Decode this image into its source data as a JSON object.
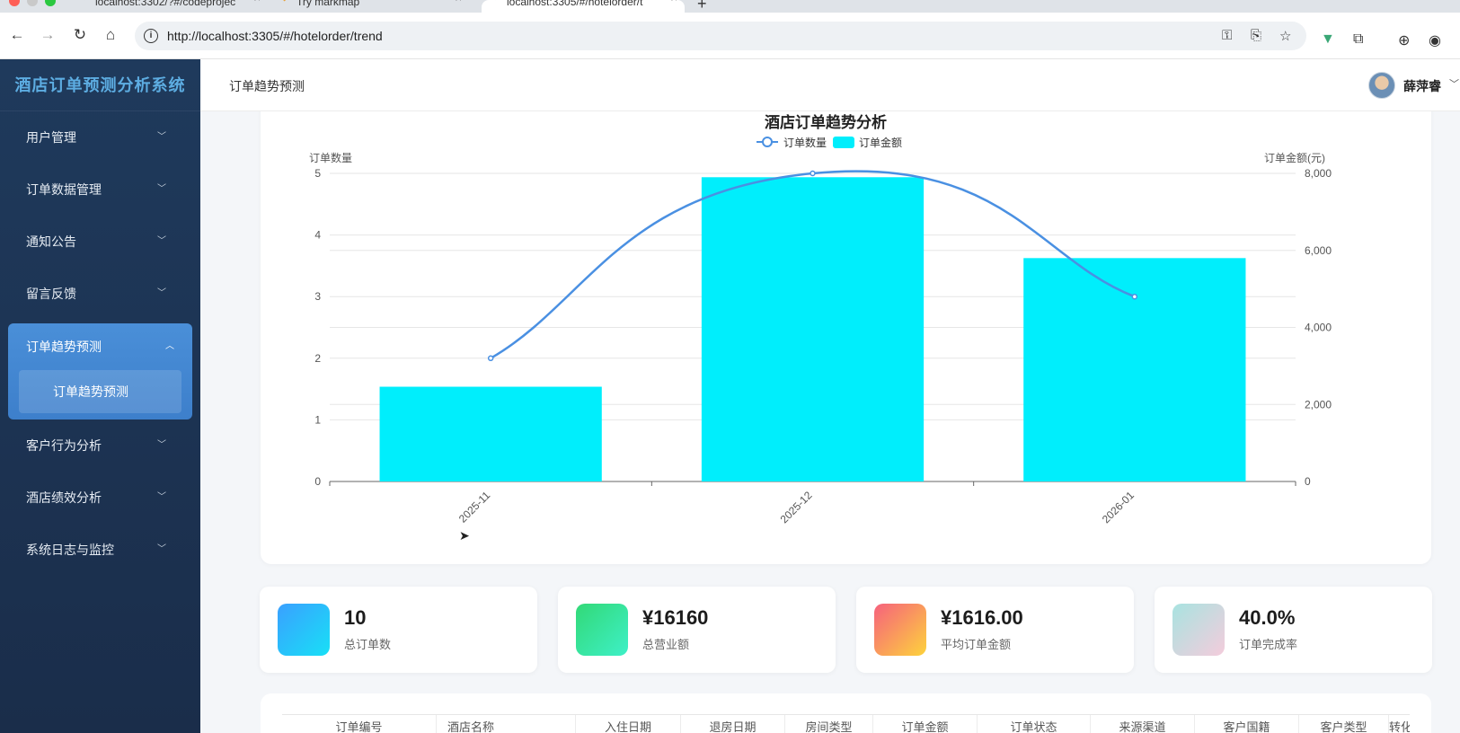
{
  "browser": {
    "tabs": [
      {
        "title": "localhost:3302/?#/codeprojec",
        "active": false
      },
      {
        "title": "Try markmap",
        "active": false
      },
      {
        "title": "localhost:3305/#/hotelorder/t",
        "active": true
      }
    ],
    "url": "http://localhost:3305/#/hotelorder/trend"
  },
  "sidebar": {
    "brand": "酒店订单预测分析系统",
    "items": [
      {
        "label": "用户管理"
      },
      {
        "label": "订单数据管理"
      },
      {
        "label": "通知公告"
      },
      {
        "label": "留言反馈"
      }
    ],
    "open_item": {
      "label": "订单趋势预测",
      "sub_label": "订单趋势预测"
    },
    "items_after": [
      {
        "label": "客户行为分析"
      },
      {
        "label": "酒店绩效分析"
      },
      {
        "label": "系统日志与监控"
      }
    ]
  },
  "header": {
    "breadcrumb": "订单趋势预测",
    "username": "薛萍睿"
  },
  "chart_data": {
    "type": "bar",
    "title": "酒店订单趋势分析",
    "categories": [
      "2025-11",
      "2025-12",
      "2026-01"
    ],
    "series": [
      {
        "name": "订单数量",
        "type": "line",
        "axis": "left",
        "values": [
          2,
          5,
          3
        ],
        "color": "#4a90e2"
      },
      {
        "name": "订单金额",
        "type": "bar",
        "axis": "right",
        "values": [
          2460,
          7900,
          5800
        ],
        "color": "#00eefc"
      }
    ],
    "ylabel_left": "订单数量",
    "ylabel_right": "订单金额(元)",
    "ylim_left": [
      0,
      5
    ],
    "ylim_right": [
      0,
      8000
    ],
    "left_ticks": [
      "0",
      "1",
      "2",
      "3",
      "4",
      "5"
    ],
    "right_ticks": [
      "0",
      "2,000",
      "4,000",
      "6,000",
      "8,000"
    ],
    "grid": true,
    "legend": "top-center"
  },
  "stats": [
    {
      "value": "10",
      "label": "总订单数"
    },
    {
      "value": "¥16160",
      "label": "总营业额"
    },
    {
      "value": "¥1616.00",
      "label": "平均订单金额"
    },
    {
      "value": "40.0%",
      "label": "订单完成率"
    }
  ],
  "table": {
    "columns": [
      "订单编号",
      "酒店名称",
      "入住日期",
      "退房日期",
      "房间类型",
      "订单金额",
      "订单状态",
      "来源渠道",
      "客户国籍",
      "客户类型",
      "转化"
    ]
  },
  "colors": {
    "sidebar_bg": "#1f3a5c",
    "brand_text": "#5dade2",
    "active_menu": "#4a8fd8",
    "bar": "#00eefc",
    "line": "#4a90e2"
  }
}
